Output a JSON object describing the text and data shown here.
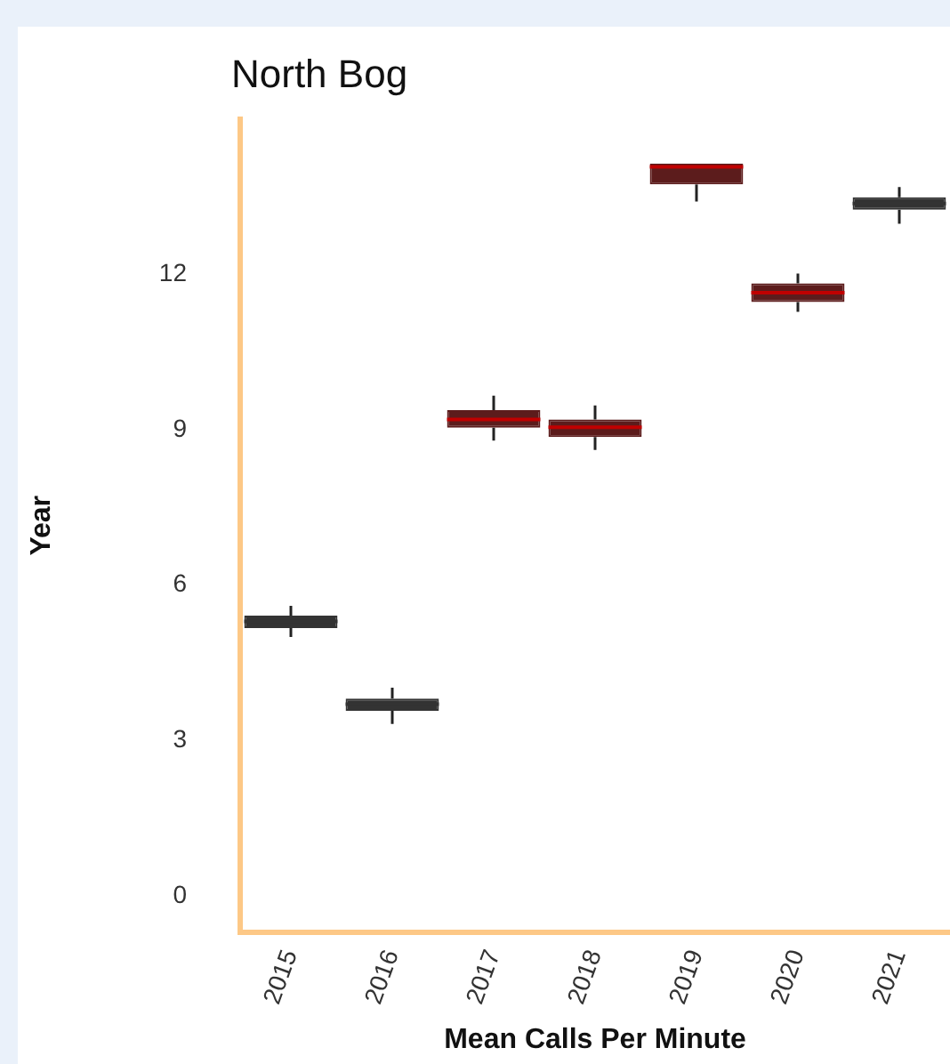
{
  "chart_data": {
    "type": "box",
    "title": "North Bog",
    "xlabel": "Mean Calls Per Minute",
    "ylabel": "Year",
    "categories": [
      "2015",
      "2016",
      "2017",
      "2018",
      "2019",
      "2020",
      "2021"
    ],
    "boxes": [
      {
        "low": 5.0,
        "q1": 5.17,
        "median": 5.3,
        "q3": 5.41,
        "high": 5.6
      },
      {
        "low": 3.32,
        "q1": 3.57,
        "median": 3.7,
        "q3": 3.81,
        "high": 4.02
      },
      {
        "low": 8.79,
        "q1": 9.04,
        "median": 9.2,
        "q3": 9.38,
        "high": 9.66
      },
      {
        "low": 8.61,
        "q1": 8.86,
        "median": 9.05,
        "q3": 9.2,
        "high": 9.47
      },
      {
        "low": 13.41,
        "q1": 13.74,
        "median": 14.08,
        "q3": 14.14,
        "high": 14.14
      },
      {
        "low": 11.28,
        "q1": 11.47,
        "median": 11.65,
        "q3": 11.83,
        "high": 12.02
      },
      {
        "low": 12.98,
        "q1": 13.25,
        "median": 13.37,
        "q3": 13.49,
        "high": 13.69
      }
    ],
    "colors": [
      "#333333",
      "#333333",
      "#5c1c1c",
      "#5c1c1c",
      "#5c1c1c",
      "#5c1c1c",
      "#333333"
    ],
    "ylim": [
      -0.7,
      15
    ],
    "yticks": [
      0,
      3,
      6,
      9,
      12
    ],
    "grid": false
  }
}
